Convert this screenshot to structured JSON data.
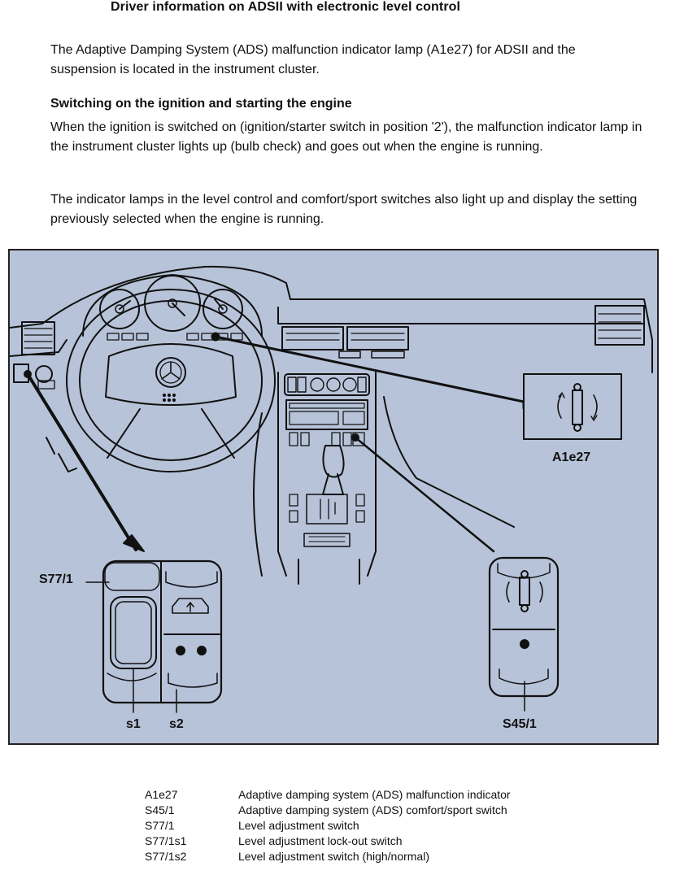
{
  "title": "Driver information on ADSII with electronic level control",
  "intro": "The Adaptive Damping System (ADS) malfunction indicator lamp (A1e27) for ADSII and the suspension is located in the instrument cluster.",
  "section_heading": "Switching on the ignition and starting the engine",
  "section_para_1": "When the ignition is switched on (ignition/starter switch in position '2'), the malfunction indicator lamp in the instrument cluster lights up (bulb check) and goes out when the engine is running.",
  "section_para_2": "The indicator lamps in the level control and comfort/sport switches also light up and display the setting previously selected when the engine is running.",
  "figure": {
    "background_color": "#b7c3d9",
    "labels": {
      "a1e27": "A1e27",
      "s77_1": "S77/1",
      "s1": "s1",
      "s2": "s2",
      "s45_1": "S45/1"
    }
  },
  "legend": [
    {
      "code": "A1e27",
      "description": "Adaptive damping system (ADS) malfunction indicator"
    },
    {
      "code": "S45/1",
      "description": "Adaptive damping system (ADS) comfort/sport switch"
    },
    {
      "code": "S77/1",
      "description": "Level adjustment switch"
    },
    {
      "code": "S77/1s1",
      "description": "Level adjustment lock-out switch"
    },
    {
      "code": "S77/1s2",
      "description": "Level adjustment switch (high/normal)"
    }
  ]
}
